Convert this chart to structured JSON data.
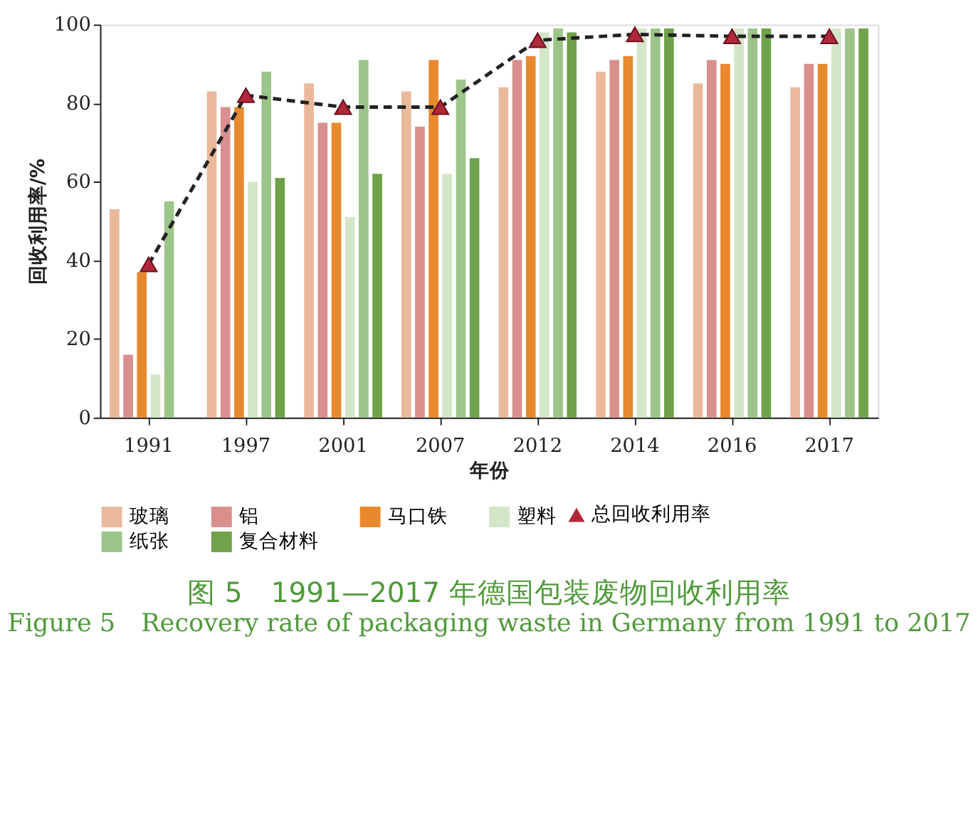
{
  "chart_data": {
    "type": "bar",
    "title": "图 5　1991—2017 年德国包装废物回收利用率",
    "subtitle": "Figure 5　Recovery rate of packaging waste in Germany from 1991 to 2017",
    "xlabel": "年份",
    "ylabel": "回收利用率/%",
    "categories": [
      "1991",
      "1997",
      "2001",
      "2007",
      "2012",
      "2014",
      "2016",
      "2017"
    ],
    "series": [
      {
        "name": "玻璃",
        "color": "#eab89a",
        "values": [
          53,
          83,
          85,
          83,
          84,
          88,
          85,
          84
        ]
      },
      {
        "name": "铝",
        "color": "#d9908c",
        "values": [
          16,
          79,
          75,
          74,
          91,
          91,
          91,
          90
        ]
      },
      {
        "name": "马口铁",
        "color": "#e8892e",
        "values": [
          37,
          79,
          75,
          91,
          92,
          92,
          90,
          90
        ]
      },
      {
        "name": "塑料",
        "color": "#d4e6c8",
        "values": [
          11,
          60,
          51,
          62,
          98,
          99,
          99,
          99
        ]
      },
      {
        "name": "纸张",
        "color": "#9cc689",
        "values": [
          55,
          88,
          91,
          86,
          99,
          99,
          99,
          99
        ]
      },
      {
        "name": "复合材料",
        "color": "#6fa24a",
        "values": [
          null,
          61,
          62,
          66,
          98,
          99,
          99,
          99
        ]
      },
      {
        "name": "总回收利用率",
        "type": "line",
        "color": "#b0283a",
        "marker": "triangle",
        "line_style": "dashed",
        "values": [
          39,
          82,
          79,
          79,
          96,
          97.5,
          97,
          97
        ]
      }
    ],
    "ylim": [
      0,
      100
    ],
    "yticks": [
      0,
      20,
      40,
      60,
      80,
      100
    ],
    "grid": false,
    "legend": "bottom"
  }
}
